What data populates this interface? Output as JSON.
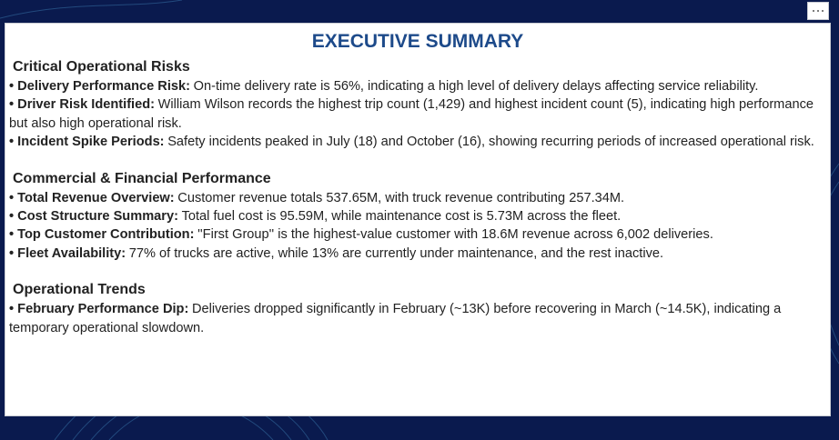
{
  "title": "EXECUTIVE SUMMARY",
  "sections": [
    {
      "heading": "Critical Operational Risks",
      "items": [
        {
          "label": "• Delivery Performance Risk:",
          "text": "On-time delivery rate is 56%, indicating a high level of delivery delays affecting service reliability."
        },
        {
          "label": "• Driver Risk Identified:",
          "text": "William Wilson records the highest trip count (1,429) and highest incident count (5), indicating high performance but also high operational risk."
        },
        {
          "label": "• Incident Spike Periods:",
          "text": "Safety incidents peaked in July (18) and October (16), showing recurring periods of increased operational risk."
        }
      ]
    },
    {
      "heading": "Commercial & Financial Performance",
      "items": [
        {
          "label": "• Total Revenue Overview:",
          "text": "Customer revenue totals 537.65M, with truck revenue contributing 257.34M."
        },
        {
          "label": "• Cost Structure Summary:",
          "text": "Total fuel cost is 95.59M, while maintenance cost is 5.73M across the fleet."
        },
        {
          "label": "• Top Customer Contribution:",
          "text": "''First Group'' is the highest-value customer with 18.6M revenue across 6,002 deliveries."
        },
        {
          "label": "• Fleet Availability:",
          "text": "77% of trucks are active, while 13% are currently under maintenance, and the rest inactive."
        }
      ]
    },
    {
      "heading": "Operational Trends",
      "items": [
        {
          "label": "• February Performance Dip:",
          "text": "Deliveries dropped significantly in February (~13K) before recovering in March (~14.5K), indicating a temporary operational slowdown."
        }
      ]
    }
  ]
}
